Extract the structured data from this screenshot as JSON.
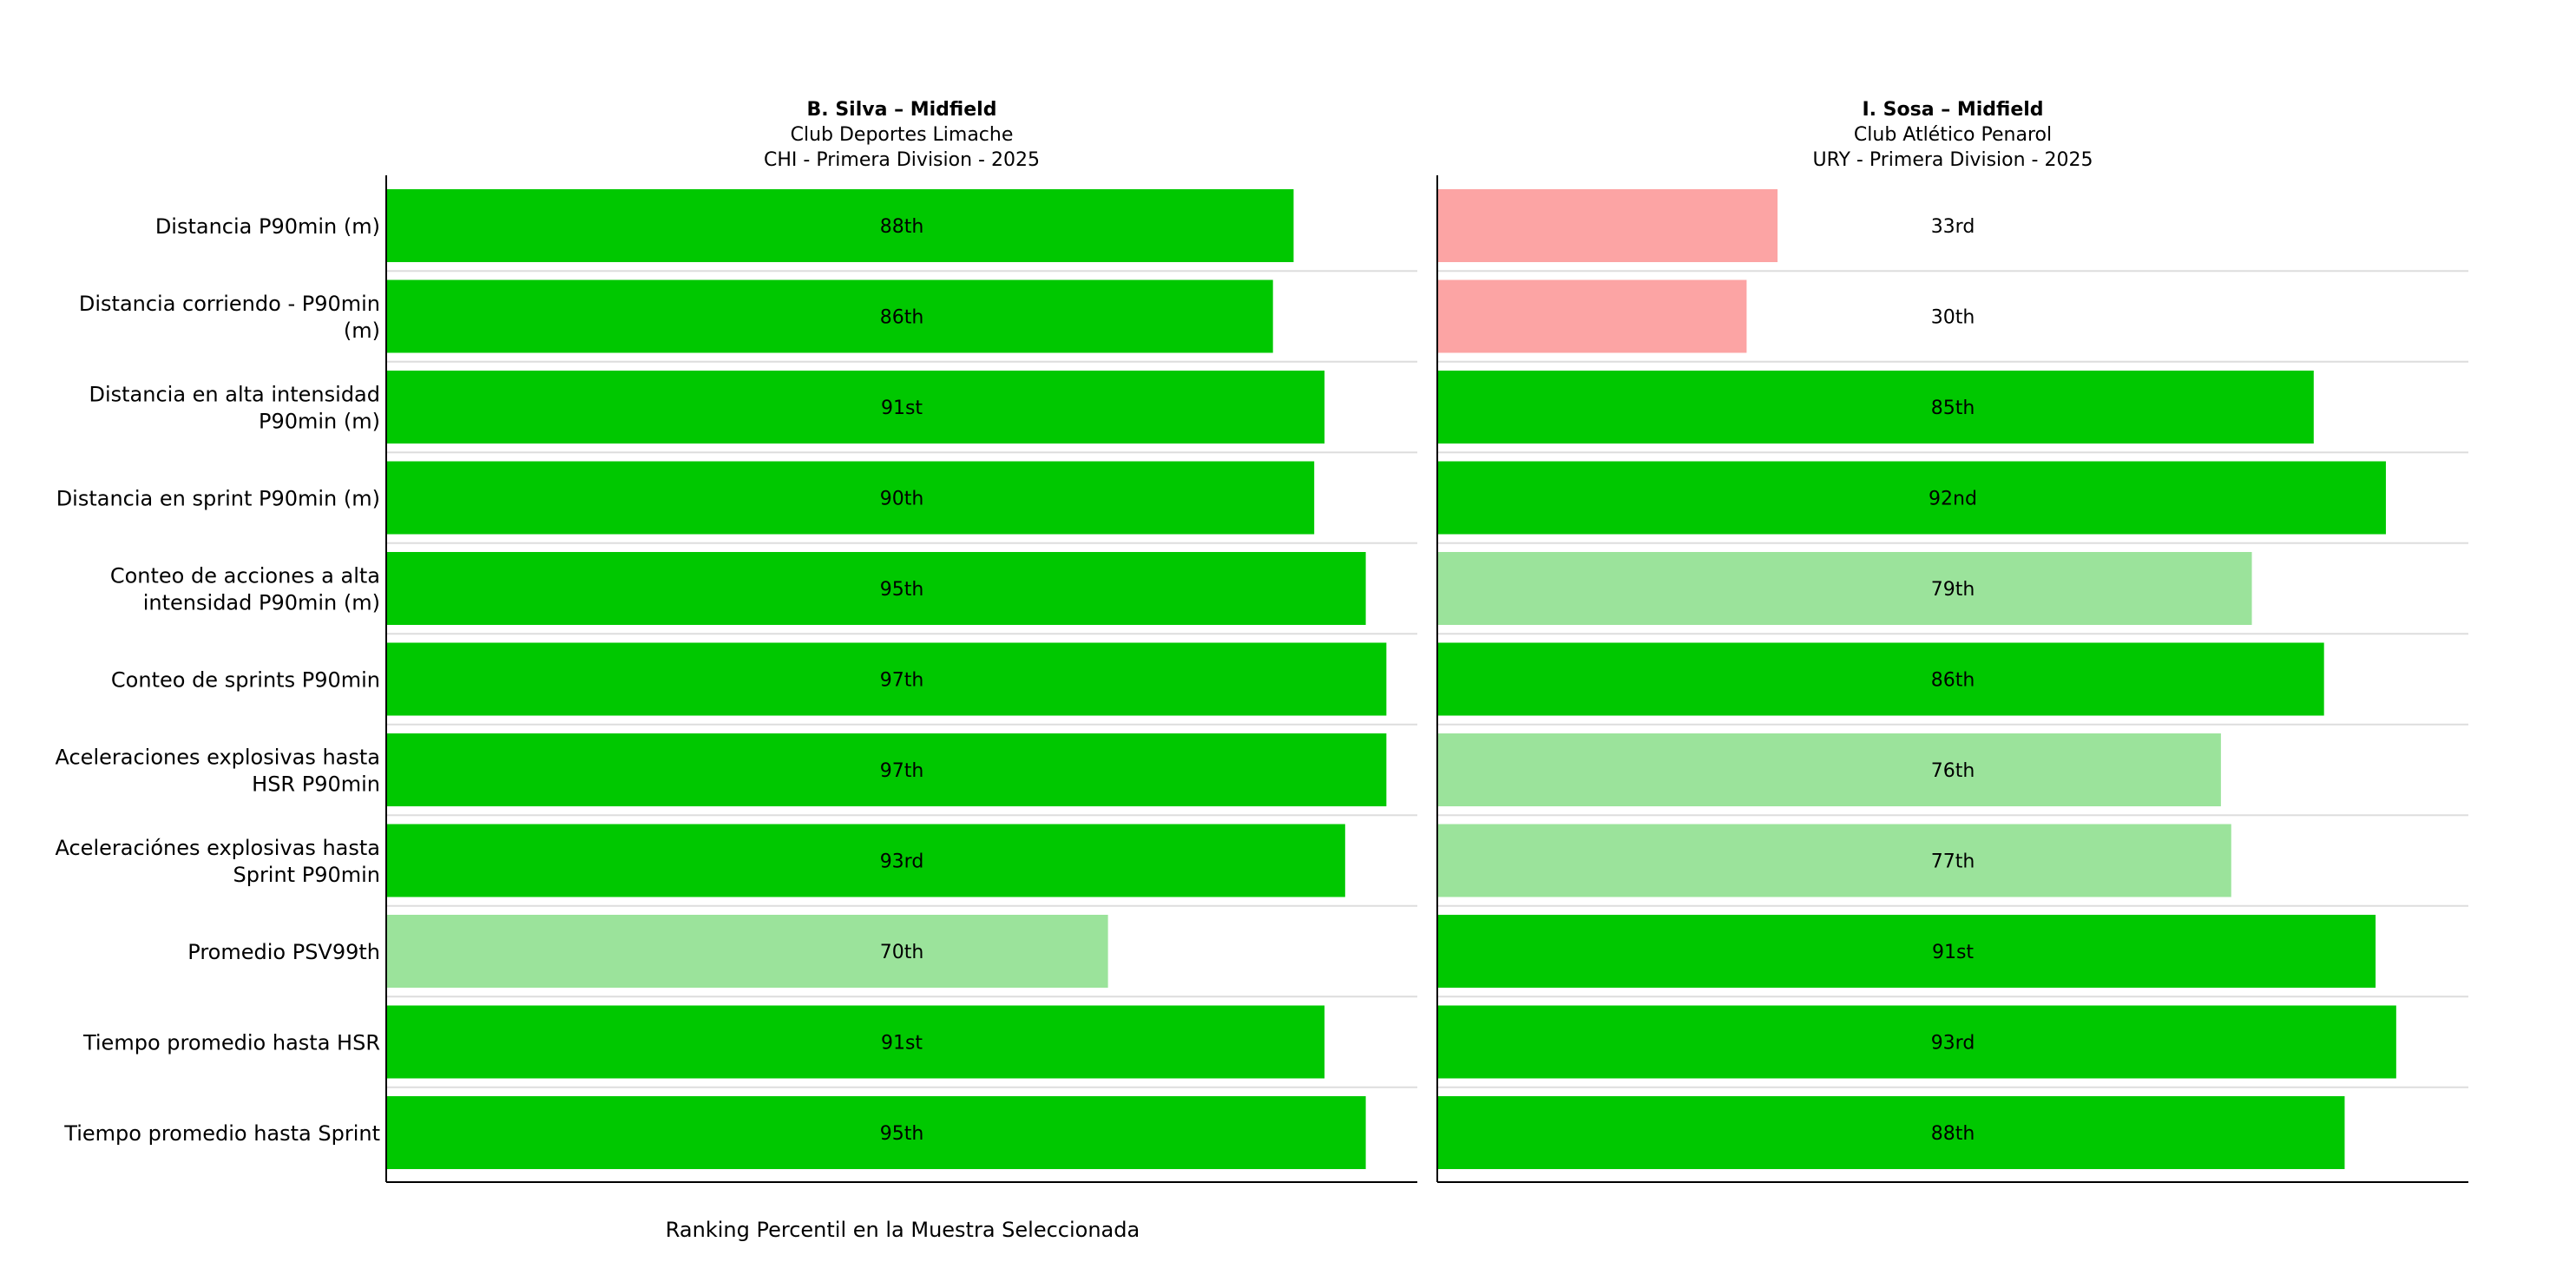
{
  "chart_data": {
    "type": "bar",
    "orientation": "horizontal",
    "categories": [
      "Distancia P90min (m)",
      "Distancia corriendo - P90min (m)",
      "Distancia en alta intensidad P90min (m)",
      "Distancia en sprint P90min (m)",
      "Conteo de acciones a alta intensidad P90min (m)",
      "Conteo de sprints P90min",
      "Aceleraciones explosivas hasta HSR P90min",
      "Aceleraciónes explosivas hasta Sprint P90min",
      "Promedio PSV99th",
      "Tiempo promedio hasta HSR",
      "Tiempo promedio hasta Sprint"
    ],
    "category_lines": [
      [
        "Distancia P90min (m)"
      ],
      [
        "Distancia corriendo - P90min",
        "(m)"
      ],
      [
        "Distancia en alta intensidad",
        "P90min (m)"
      ],
      [
        "Distancia en sprint P90min (m)"
      ],
      [
        "Conteo de acciones a alta",
        "intensidad P90min (m)"
      ],
      [
        "Conteo de sprints P90min"
      ],
      [
        "Aceleraciones explosivas hasta",
        "HSR P90min"
      ],
      [
        "Aceleraciónes explosivas hasta",
        "Sprint P90min"
      ],
      [
        "Promedio PSV99th"
      ],
      [
        "Tiempo promedio hasta HSR"
      ],
      [
        "Tiempo promedio hasta Sprint"
      ]
    ],
    "xlabel": "Ranking Percentil en la Muestra Seleccionada",
    "xlim": [
      0,
      100
    ],
    "colors": {
      "high": "#00c800",
      "mid": "#9be39b",
      "low": "#fca4a4"
    },
    "panels": [
      {
        "title_lines": [
          "B. Silva – Midfield",
          "Club Deportes Limache",
          "CHI - Primera Division - 2025"
        ],
        "values": [
          88,
          86,
          91,
          90,
          95,
          97,
          97,
          93,
          70,
          91,
          95
        ],
        "labels": [
          "88th",
          "86th",
          "91st",
          "90th",
          "95th",
          "97th",
          "97th",
          "93rd",
          "70th",
          "91st",
          "95th"
        ]
      },
      {
        "title_lines": [
          "I. Sosa – Midfield",
          "Club Atlético Penarol",
          "URY - Primera Division - 2025"
        ],
        "values": [
          33,
          30,
          85,
          92,
          79,
          86,
          76,
          77,
          91,
          93,
          88
        ],
        "labels": [
          "33rd",
          "30th",
          "85th",
          "92nd",
          "79th",
          "86th",
          "76th",
          "77th",
          "91st",
          "93rd",
          "88th"
        ]
      }
    ]
  }
}
